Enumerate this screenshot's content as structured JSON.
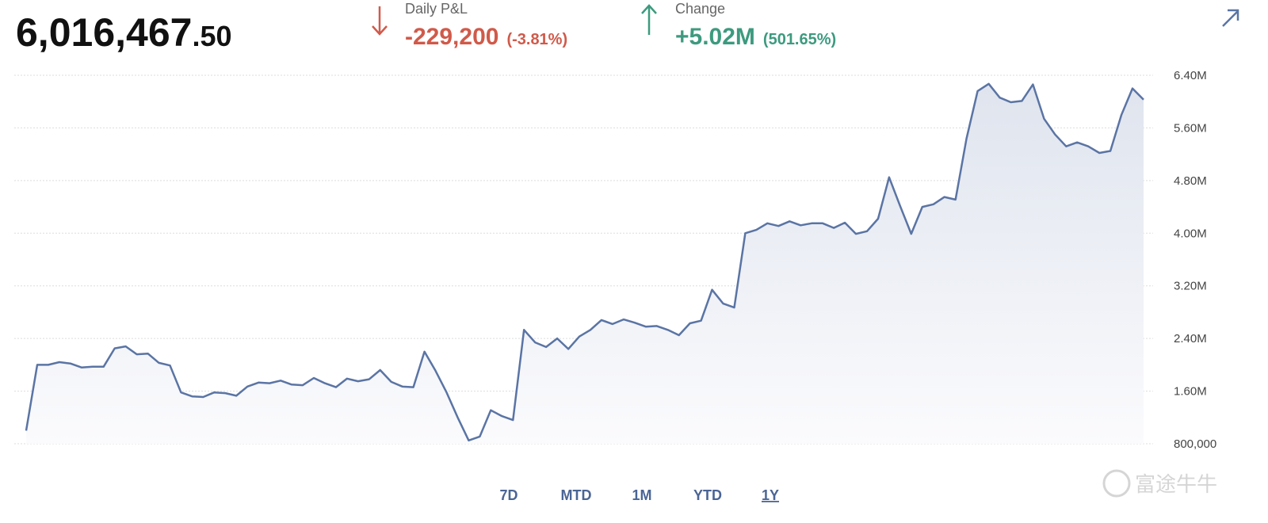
{
  "header": {
    "balance_main": "6,016,467",
    "balance_decimal": ".50",
    "daily_label": "Daily P&L",
    "daily_value": "-229,200",
    "daily_pct": "(-3.81%)",
    "change_label": "Change",
    "change_value": "+5.02M",
    "change_pct": "(501.65%)"
  },
  "chart_data": {
    "type": "area",
    "color": "#5a74a4",
    "grid": true,
    "values": [
      1000000,
      2000000,
      2000000,
      2040000,
      2020000,
      1960000,
      1970000,
      1970000,
      2250000,
      2280000,
      2160000,
      2170000,
      2030000,
      1990000,
      1580000,
      1520000,
      1510000,
      1580000,
      1570000,
      1530000,
      1670000,
      1730000,
      1720000,
      1760000,
      1700000,
      1690000,
      1800000,
      1720000,
      1660000,
      1790000,
      1750000,
      1780000,
      1920000,
      1740000,
      1670000,
      1660000,
      2200000,
      1910000,
      1580000,
      1200000,
      850000,
      910000,
      1310000,
      1220000,
      1160000,
      2530000,
      2340000,
      2270000,
      2400000,
      2240000,
      2430000,
      2530000,
      2680000,
      2620000,
      2690000,
      2640000,
      2580000,
      2590000,
      2530000,
      2450000,
      2630000,
      2670000,
      3140000,
      2930000,
      2870000,
      4000000,
      4050000,
      4150000,
      4110000,
      4180000,
      4120000,
      4150000,
      4150000,
      4080000,
      4160000,
      3990000,
      4030000,
      4220000,
      4850000,
      4410000,
      3990000,
      4400000,
      4440000,
      4550000,
      4510000,
      5440000,
      6160000,
      6270000,
      6060000,
      5990000,
      6010000,
      6260000,
      5740000,
      5500000,
      5320000,
      5380000,
      5320000,
      5220000,
      5250000,
      5800000,
      6200000,
      6030000
    ],
    "ylim": [
      800000,
      6400000
    ],
    "yticks": [
      {
        "value": 800000,
        "label": "800,000"
      },
      {
        "value": 1600000,
        "label": "1.60M"
      },
      {
        "value": 2400000,
        "label": "2.40M"
      },
      {
        "value": 3200000,
        "label": "3.20M"
      },
      {
        "value": 4000000,
        "label": "4.00M"
      },
      {
        "value": 4800000,
        "label": "4.80M"
      },
      {
        "value": 5600000,
        "label": "5.60M"
      },
      {
        "value": 6400000,
        "label": "6.40M"
      }
    ]
  },
  "range_tabs": [
    "7D",
    "MTD",
    "1M",
    "YTD",
    "1Y"
  ],
  "active_tab": 4,
  "watermark": "富途牛牛"
}
